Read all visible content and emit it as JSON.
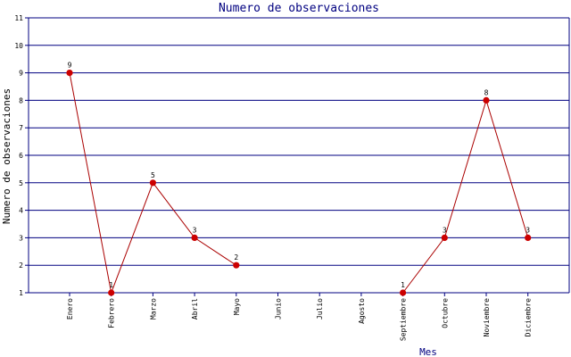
{
  "chart_data": {
    "type": "line",
    "title": "Numero de observaciones",
    "xlabel": "Mes",
    "ylabel": "Numero de observaciones",
    "categories": [
      "Enero",
      "Febrero",
      "Marzo",
      "Abril",
      "Mayo",
      "Junio",
      "Julio",
      "Agosto",
      "Septiembre",
      "Octubre",
      "Noviembre",
      "Diciembre"
    ],
    "series": [
      {
        "values": [
          9,
          1,
          5,
          3,
          2,
          null,
          null,
          null,
          1,
          3,
          8,
          3
        ],
        "color": "#cc0000"
      }
    ],
    "segments": [
      [
        0,
        4
      ],
      [
        8,
        11
      ]
    ],
    "ylim": [
      1,
      11
    ],
    "yticks": [
      1,
      2,
      3,
      4,
      5,
      6,
      7,
      8,
      9,
      10,
      11
    ],
    "grid": true,
    "legend": "none",
    "colors": {
      "grid": "#000080",
      "axis": "#000080",
      "title": "#000080",
      "text": "#000000",
      "line": "#aa0000",
      "marker": "#cc0000"
    }
  }
}
